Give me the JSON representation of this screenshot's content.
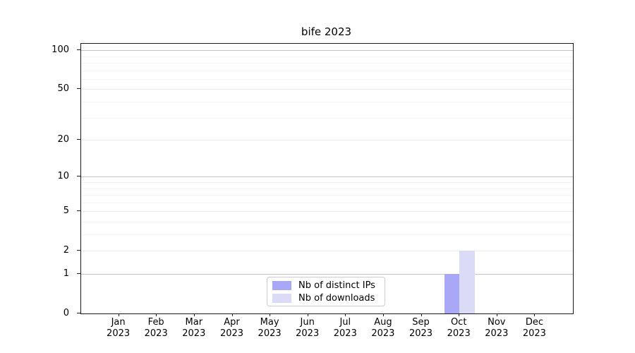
{
  "chart_data": {
    "type": "bar",
    "title": "bife 2023",
    "categories": [
      "Jan 2023",
      "Feb 2023",
      "Mar 2023",
      "Apr 2023",
      "May 2023",
      "Jun 2023",
      "Jul 2023",
      "Aug 2023",
      "Sep 2023",
      "Oct 2023",
      "Nov 2023",
      "Dec 2023"
    ],
    "series": [
      {
        "name": "Nb of distinct IPs",
        "color": "#a8a8f7",
        "values": [
          0,
          0,
          0,
          0,
          0,
          0,
          0,
          0,
          0,
          1,
          0,
          0
        ]
      },
      {
        "name": "Nb of downloads",
        "color": "#dbdbf8",
        "values": [
          0,
          0,
          0,
          0,
          0,
          0,
          0,
          0,
          0,
          2,
          0,
          0
        ]
      }
    ],
    "y_ticks": [
      0,
      1,
      2,
      5,
      10,
      20,
      50,
      100
    ],
    "yscale": "log1p",
    "ylim": [
      0,
      112
    ],
    "xlabel": "",
    "ylabel": "",
    "grid": "horizontal",
    "legend_position": "lower-center"
  },
  "colors": {
    "spine": "#1a1a1a",
    "grid_major": "#c4c4c4",
    "grid_labeled": "#ededed",
    "grid_minor": "#f4f4f4",
    "legend_border": "#cccccc",
    "background": "#ffffff"
  }
}
